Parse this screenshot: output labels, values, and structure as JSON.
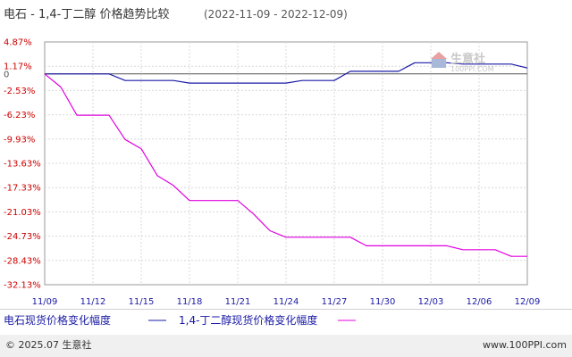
{
  "title": {
    "main": "电石 - 1,4-丁二醇 价格趋势比较",
    "range": "(2022-11-09 - 2022-12-09)"
  },
  "chart_data": {
    "type": "line",
    "y_ticks": [
      "4.87%",
      "1.17%",
      "0",
      "-2.53%",
      "-6.23%",
      "-9.93%",
      "-13.63%",
      "-17.33%",
      "-21.03%",
      "-24.73%",
      "-28.43%",
      "-32.13%"
    ],
    "y_tick_values": [
      4.87,
      1.17,
      0,
      -2.53,
      -6.23,
      -9.93,
      -13.63,
      -17.33,
      -21.03,
      -24.73,
      -28.43,
      -32.13
    ],
    "ylim": [
      -32.13,
      4.87
    ],
    "x_tick_labels": [
      "11/09",
      "11/12",
      "11/15",
      "11/18",
      "11/21",
      "11/24",
      "11/27",
      "11/30",
      "12/03",
      "12/06",
      "12/09"
    ],
    "x": [
      "11/09",
      "11/10",
      "11/11",
      "11/12",
      "11/13",
      "11/14",
      "11/15",
      "11/16",
      "11/17",
      "11/18",
      "11/19",
      "11/20",
      "11/21",
      "11/22",
      "11/23",
      "11/24",
      "11/25",
      "11/26",
      "11/27",
      "11/28",
      "11/29",
      "11/30",
      "12/01",
      "12/02",
      "12/03",
      "12/04",
      "12/05",
      "12/06",
      "12/07",
      "12/08",
      "12/09"
    ],
    "series": [
      {
        "name": "电石现货价格变化幅度",
        "color": "#1a1aa6",
        "values": [
          0,
          0,
          0,
          0,
          0,
          -1.0,
          -1.0,
          -1.0,
          -1.0,
          -1.4,
          -1.4,
          -1.4,
          -1.4,
          -1.4,
          -1.4,
          -1.4,
          -1.0,
          -1.0,
          -1.0,
          0.4,
          0.4,
          0.4,
          0.4,
          1.7,
          1.7,
          1.7,
          1.5,
          1.5,
          1.5,
          1.5,
          0.9
        ]
      },
      {
        "name": "1,4-丁二醇现货价格变化幅度",
        "color": "#e000e0",
        "values": [
          0,
          -2.0,
          -6.3,
          -6.3,
          -6.3,
          -10.0,
          -11.4,
          -15.5,
          -17.0,
          -19.3,
          -19.3,
          -19.3,
          -19.3,
          -21.4,
          -23.9,
          -24.9,
          -24.9,
          -24.9,
          -24.9,
          -24.9,
          -26.2,
          -26.2,
          -26.2,
          -26.2,
          -26.2,
          -26.2,
          -26.8,
          -26.8,
          -26.8,
          -27.8,
          -27.8
        ]
      }
    ],
    "grid": true,
    "legend": "bottom"
  },
  "legend": {
    "items": [
      {
        "label": "电石现货价格变化幅度",
        "color": "#1a1aa6"
      },
      {
        "label": "1,4-丁二醇现货价格变化幅度",
        "color": "#e000e0"
      }
    ]
  },
  "watermark": {
    "brand": "生意社",
    "url": "100PPI.COM"
  },
  "footer": {
    "left": "© 2025.07 生意社",
    "right": "www.100PPI.com"
  }
}
